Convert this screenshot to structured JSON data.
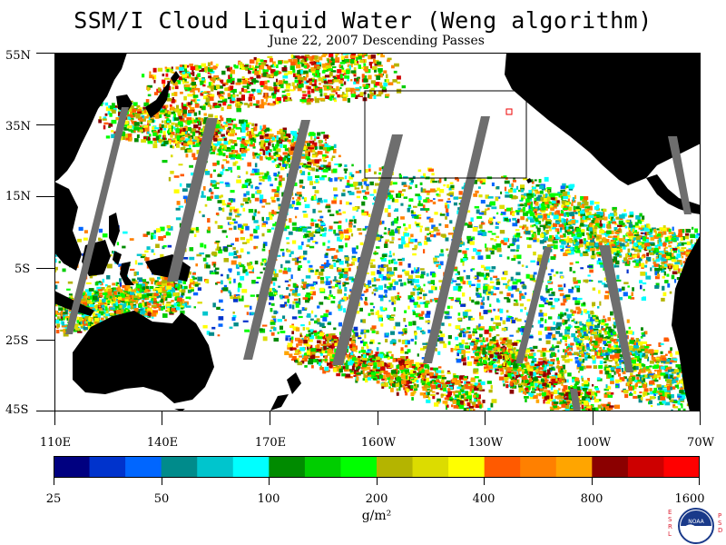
{
  "header": {
    "title": "SSM/I Cloud Liquid Water (Weng algorithm)",
    "subtitle": "June 22, 2007  Descending Passes"
  },
  "axes": {
    "lat_labels": [
      "55N",
      "35N",
      "15N",
      "5S",
      "25S",
      "45S"
    ],
    "lon_labels": [
      "110E",
      "140E",
      "170E",
      "160W",
      "130W",
      "100W",
      "70W"
    ]
  },
  "colorbar": {
    "colors": [
      "#000080",
      "#0033cc",
      "#0066ff",
      "#008b8b",
      "#00c5cd",
      "#00ffff",
      "#008b00",
      "#00cd00",
      "#00ff00",
      "#b4b400",
      "#dcdc00",
      "#ffff00",
      "#ff5a00",
      "#ff8000",
      "#ffa500",
      "#8b0000",
      "#cd0000",
      "#ff0000"
    ],
    "tick_labels": [
      "25",
      "50",
      "100",
      "200",
      "400",
      "800",
      "1600"
    ],
    "units": "g/m²"
  },
  "map_colors": {
    "land": "#000000",
    "no_data_swath_gap": "#6e6e6e",
    "clear": "#ffffff"
  },
  "logo": {
    "left_letters": [
      "E",
      "S",
      "R",
      "L"
    ],
    "right_letters": [
      "P",
      "S",
      "D"
    ],
    "emblem_text": "NOAA"
  }
}
